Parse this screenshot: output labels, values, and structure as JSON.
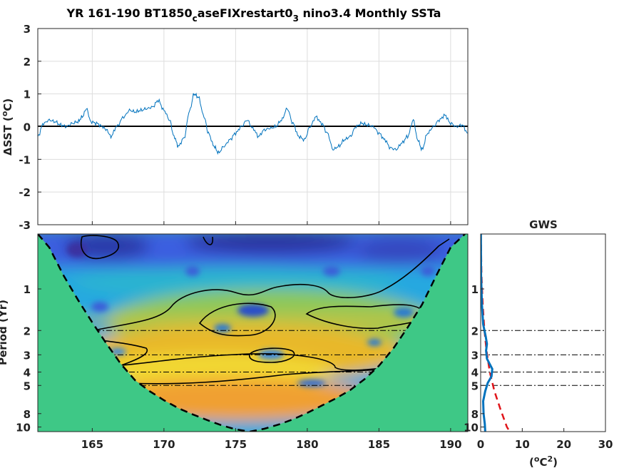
{
  "title": {
    "prefix": "YR 161-190 BT1850",
    "sub1": "c",
    "mid": "aseFIXrestart0",
    "sub2": "3",
    "suffix": " nino3.4 Monthly SSTa"
  },
  "chart_data": [
    {
      "type": "line",
      "ylabel_prefix": "ΔSST (",
      "ylabel_sup": "o",
      "ylabel_suffix": "C)",
      "xlim": [
        161.2,
        191.2
      ],
      "ylim": [
        -3,
        3
      ],
      "yticks": [
        "3",
        "2",
        "1",
        "0",
        "-1",
        "-2",
        "-3"
      ],
      "ytick_values": [
        3,
        2,
        1,
        0,
        -1,
        -2,
        -3
      ],
      "xtick_values": [
        165,
        170,
        175,
        180,
        185,
        190
      ],
      "grid": true,
      "color": "#0072BD",
      "zero_line": true,
      "anchors": [
        [
          161.2,
          -0.3
        ],
        [
          161.6,
          0.1
        ],
        [
          162.0,
          0.2
        ],
        [
          162.4,
          0.15
        ],
        [
          162.8,
          0.05
        ],
        [
          163.2,
          0.0
        ],
        [
          163.6,
          0.1
        ],
        [
          164.0,
          0.15
        ],
        [
          164.3,
          0.3
        ],
        [
          164.6,
          0.55
        ],
        [
          164.9,
          0.15
        ],
        [
          165.3,
          0.1
        ],
        [
          165.7,
          0.0
        ],
        [
          166.0,
          -0.1
        ],
        [
          166.3,
          -0.3
        ],
        [
          166.7,
          0.0
        ],
        [
          167.2,
          0.3
        ],
        [
          167.6,
          0.5
        ],
        [
          168.0,
          0.45
        ],
        [
          168.4,
          0.5
        ],
        [
          168.8,
          0.55
        ],
        [
          169.2,
          0.6
        ],
        [
          169.6,
          0.8
        ],
        [
          170.0,
          0.5
        ],
        [
          170.4,
          0.2
        ],
        [
          170.7,
          -0.3
        ],
        [
          171.0,
          -0.6
        ],
        [
          171.4,
          -0.35
        ],
        [
          171.8,
          0.5
        ],
        [
          172.1,
          1.0
        ],
        [
          172.4,
          0.9
        ],
        [
          172.8,
          0.3
        ],
        [
          173.1,
          -0.2
        ],
        [
          173.5,
          -0.6
        ],
        [
          173.8,
          -0.8
        ],
        [
          174.2,
          -0.6
        ],
        [
          174.6,
          -0.4
        ],
        [
          175.0,
          -0.2
        ],
        [
          175.4,
          0.0
        ],
        [
          175.8,
          0.2
        ],
        [
          176.2,
          -0.05
        ],
        [
          176.6,
          -0.3
        ],
        [
          177.0,
          -0.1
        ],
        [
          177.4,
          -0.05
        ],
        [
          177.8,
          0.0
        ],
        [
          178.2,
          0.2
        ],
        [
          178.6,
          0.55
        ],
        [
          179.0,
          0.1
        ],
        [
          179.4,
          -0.3
        ],
        [
          179.8,
          -0.4
        ],
        [
          180.2,
          0.0
        ],
        [
          180.6,
          0.3
        ],
        [
          181.0,
          0.1
        ],
        [
          181.4,
          -0.2
        ],
        [
          181.8,
          -0.7
        ],
        [
          182.2,
          -0.6
        ],
        [
          182.6,
          -0.4
        ],
        [
          183.0,
          -0.3
        ],
        [
          183.4,
          0.0
        ],
        [
          183.8,
          0.1
        ],
        [
          184.2,
          0.05
        ],
        [
          184.6,
          0.0
        ],
        [
          185.0,
          -0.2
        ],
        [
          185.4,
          -0.4
        ],
        [
          185.8,
          -0.65
        ],
        [
          186.2,
          -0.7
        ],
        [
          186.6,
          -0.5
        ],
        [
          187.0,
          -0.3
        ],
        [
          187.4,
          0.2
        ],
        [
          187.7,
          -0.4
        ],
        [
          188.0,
          -0.7
        ],
        [
          188.4,
          -0.2
        ],
        [
          188.8,
          0.0
        ],
        [
          189.2,
          0.2
        ],
        [
          189.6,
          0.35
        ],
        [
          190.0,
          0.1
        ],
        [
          190.4,
          0.0
        ],
        [
          190.8,
          0.05
        ],
        [
          191.2,
          -0.2
        ]
      ]
    },
    {
      "type": "heatmap",
      "ylabel": "Period (Yr)",
      "ylog": true,
      "ylim": [
        0.4,
        10.8
      ],
      "xlim": [
        161.2,
        191.2
      ],
      "xticks": [
        "165",
        "170",
        "175",
        "180",
        "185",
        "190"
      ],
      "xtick_values": [
        165,
        170,
        175,
        180,
        185,
        190
      ],
      "yticks": [
        "1",
        "2",
        "3",
        "4",
        "5",
        "8",
        "10"
      ],
      "ytick_values": [
        1,
        2,
        3,
        4,
        5,
        8,
        10
      ],
      "reference_periods": [
        2,
        3,
        4,
        5
      ],
      "cone_of_influence": [
        [
          161.2,
          0.4
        ],
        [
          162.0,
          0.5
        ],
        [
          163.0,
          0.8
        ],
        [
          164.0,
          1.2
        ],
        [
          165.0,
          1.75
        ],
        [
          166.0,
          2.5
        ],
        [
          167.0,
          3.5
        ],
        [
          168.0,
          4.6
        ],
        [
          169.0,
          5.5
        ],
        [
          170.0,
          6.4
        ],
        [
          171.0,
          7.3
        ],
        [
          172.0,
          8.1
        ],
        [
          173.0,
          8.9
        ],
        [
          174.0,
          9.7
        ],
        [
          175.0,
          10.4
        ],
        [
          176.0,
          10.8
        ],
        [
          177.0,
          10.3
        ],
        [
          178.0,
          9.6
        ],
        [
          179.0,
          8.8
        ],
        [
          180.0,
          7.9
        ],
        [
          181.0,
          7.0
        ],
        [
          182.0,
          6.2
        ],
        [
          183.0,
          5.4
        ],
        [
          184.0,
          4.5
        ],
        [
          185.0,
          3.6
        ],
        [
          186.0,
          2.7
        ],
        [
          187.0,
          1.9
        ],
        [
          188.0,
          1.3
        ],
        [
          189.0,
          0.8
        ],
        [
          190.0,
          0.5
        ],
        [
          191.0,
          0.4
        ]
      ]
    },
    {
      "type": "line",
      "title": "GWS",
      "xlabel_prefix": "(",
      "xlabel_sup1": "o",
      "xlabel_mid": "C",
      "xlabel_sup2": "2",
      "xlabel_suffix": ")",
      "xlim": [
        0,
        30
      ],
      "xticks": [
        "0",
        "10",
        "20",
        "30"
      ],
      "xtick_values": [
        0,
        10,
        20,
        30
      ],
      "yticks": [
        "1",
        "2",
        "3",
        "4",
        "5",
        "8",
        "10"
      ],
      "ytick_values": [
        1,
        2,
        3,
        4,
        5,
        8,
        10
      ],
      "ylog": true,
      "ylim": [
        0.4,
        10.8
      ],
      "reference_periods": [
        2,
        3,
        4,
        5
      ],
      "series": [
        {
          "color": "#0072BD",
          "style": "solid",
          "points": [
            [
              0.05,
              0.4
            ],
            [
              0.1,
              0.8
            ],
            [
              0.3,
              1.3
            ],
            [
              0.6,
              1.8
            ],
            [
              1.2,
              2.2
            ],
            [
              1.5,
              2.5
            ],
            [
              1.3,
              2.8
            ],
            [
              1.5,
              3.2
            ],
            [
              2.8,
              3.8
            ],
            [
              2.6,
              4.3
            ],
            [
              1.7,
              4.8
            ],
            [
              1.1,
              5.5
            ],
            [
              0.6,
              6.5
            ],
            [
              0.7,
              8.0
            ],
            [
              1.0,
              9.5
            ],
            [
              1.1,
              10.8
            ]
          ]
        },
        {
          "color": "#e0151a",
          "style": "dashed",
          "points": [
            [
              0.05,
              0.4
            ],
            [
              0.2,
              0.8
            ],
            [
              0.5,
              1.3
            ],
            [
              0.9,
              2.0
            ],
            [
              1.4,
              2.8
            ],
            [
              2.2,
              4.0
            ],
            [
              3.3,
              5.5
            ],
            [
              4.8,
              7.5
            ],
            [
              6.3,
              10.0
            ],
            [
              7.0,
              10.8
            ]
          ]
        }
      ]
    }
  ]
}
